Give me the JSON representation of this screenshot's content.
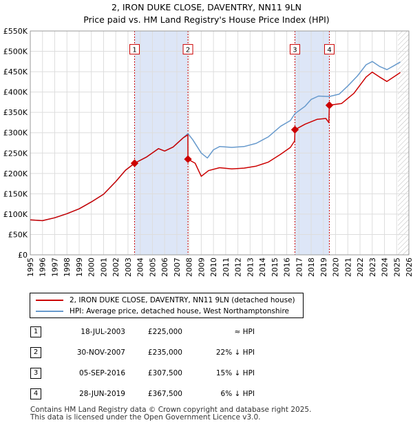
{
  "title_line1": "2, IRON DUKE CLOSE, DAVENTRY, NN11 9LN",
  "title_line2": "Price paid vs. HM Land Registry's House Price Index (HPI)",
  "colors": {
    "price": "#cc0000",
    "hpi": "#6699cc",
    "shade": "#dde6f7",
    "grid": "#dddddd"
  },
  "chart_data": {
    "type": "line",
    "xlim": [
      1995,
      2026
    ],
    "ylim": [
      0,
      550000
    ],
    "x_ticks": [
      "1995",
      "1996",
      "1997",
      "1998",
      "1999",
      "2000",
      "2001",
      "2002",
      "2003",
      "2004",
      "2005",
      "2006",
      "2007",
      "2008",
      "2009",
      "2010",
      "2011",
      "2012",
      "2013",
      "2014",
      "2015",
      "2016",
      "2017",
      "2018",
      "2019",
      "2020",
      "2021",
      "2022",
      "2023",
      "2024",
      "2025",
      "2026"
    ],
    "y_ticks": [
      {
        "value": 0,
        "label": "£0"
      },
      {
        "value": 50000,
        "label": "£50K"
      },
      {
        "value": 100000,
        "label": "£100K"
      },
      {
        "value": 150000,
        "label": "£150K"
      },
      {
        "value": 200000,
        "label": "£200K"
      },
      {
        "value": 250000,
        "label": "£250K"
      },
      {
        "value": 300000,
        "label": "£300K"
      },
      {
        "value": 350000,
        "label": "£350K"
      },
      {
        "value": 400000,
        "label": "£400K"
      },
      {
        "value": 450000,
        "label": "£450K"
      },
      {
        "value": 500000,
        "label": "£500K"
      },
      {
        "value": 550000,
        "label": "£550K"
      }
    ],
    "shaded_ranges": [
      [
        2003.54,
        2007.91
      ],
      [
        2016.67,
        2019.49
      ]
    ],
    "projection_start": 2025.1,
    "series": [
      {
        "name": "2, IRON DUKE CLOSE, DAVENTRY, NN11 9LN (detached house)",
        "color": "#cc0000",
        "points": [
          [
            1995.0,
            86000
          ],
          [
            1996.0,
            84000
          ],
          [
            1997.0,
            91000
          ],
          [
            1998.0,
            101000
          ],
          [
            1999.0,
            113000
          ],
          [
            2000.0,
            130000
          ],
          [
            2001.0,
            149000
          ],
          [
            2002.0,
            180000
          ],
          [
            2002.8,
            208000
          ],
          [
            2003.54,
            225000
          ],
          [
            2004.5,
            240000
          ],
          [
            2005.5,
            261000
          ],
          [
            2006.0,
            255000
          ],
          [
            2006.7,
            265000
          ],
          [
            2007.5,
            287000
          ],
          [
            2007.9,
            295000
          ],
          [
            2007.91,
            235000
          ],
          [
            2008.5,
            225000
          ],
          [
            2009.0,
            193000
          ],
          [
            2009.6,
            207000
          ],
          [
            2010.5,
            214000
          ],
          [
            2011.5,
            211000
          ],
          [
            2012.5,
            213000
          ],
          [
            2013.5,
            218000
          ],
          [
            2014.5,
            228000
          ],
          [
            2015.5,
            247000
          ],
          [
            2016.3,
            264000
          ],
          [
            2016.65,
            280000
          ],
          [
            2016.67,
            307500
          ],
          [
            2017.5,
            321000
          ],
          [
            2018.5,
            333000
          ],
          [
            2019.2,
            335000
          ],
          [
            2019.45,
            325000
          ],
          [
            2019.49,
            367500
          ],
          [
            2020.5,
            372000
          ],
          [
            2021.5,
            397000
          ],
          [
            2022.5,
            437000
          ],
          [
            2023.0,
            449000
          ],
          [
            2023.6,
            437000
          ],
          [
            2024.2,
            426000
          ],
          [
            2024.8,
            438000
          ],
          [
            2025.3,
            448000
          ]
        ]
      },
      {
        "name": "HPI: Average price, detached house, West Northamptonshire",
        "color": "#6699cc",
        "points": [
          [
            1995.0,
            86000
          ],
          [
            1996.0,
            84000
          ],
          [
            1997.0,
            91000
          ],
          [
            1998.0,
            101000
          ],
          [
            1999.0,
            113000
          ],
          [
            2000.0,
            130000
          ],
          [
            2001.0,
            149000
          ],
          [
            2002.0,
            180000
          ],
          [
            2002.8,
            208000
          ],
          [
            2003.54,
            225000
          ],
          [
            2004.5,
            240000
          ],
          [
            2005.5,
            261000
          ],
          [
            2006.0,
            255000
          ],
          [
            2006.7,
            265000
          ],
          [
            2007.5,
            287000
          ],
          [
            2007.9,
            298000
          ],
          [
            2008.3,
            283000
          ],
          [
            2009.0,
            250000
          ],
          [
            2009.5,
            238000
          ],
          [
            2010.0,
            258000
          ],
          [
            2010.5,
            266000
          ],
          [
            2011.5,
            264000
          ],
          [
            2012.5,
            266000
          ],
          [
            2013.5,
            274000
          ],
          [
            2014.5,
            290000
          ],
          [
            2015.5,
            316000
          ],
          [
            2016.3,
            330000
          ],
          [
            2016.67,
            347000
          ],
          [
            2017.5,
            365000
          ],
          [
            2018.0,
            382000
          ],
          [
            2018.6,
            390000
          ],
          [
            2019.49,
            389000
          ],
          [
            2020.3,
            395000
          ],
          [
            2021.0,
            415000
          ],
          [
            2021.8,
            440000
          ],
          [
            2022.5,
            467000
          ],
          [
            2023.0,
            475000
          ],
          [
            2023.6,
            463000
          ],
          [
            2024.2,
            455000
          ],
          [
            2024.8,
            465000
          ],
          [
            2025.3,
            474000
          ]
        ]
      }
    ],
    "markers": [
      {
        "label": "1",
        "x": 2003.54,
        "y": 225000
      },
      {
        "label": "2",
        "x": 2007.91,
        "y": 235000
      },
      {
        "label": "3",
        "x": 2016.67,
        "y": 307500
      },
      {
        "label": "4",
        "x": 2019.49,
        "y": 367500
      }
    ],
    "marker_label_y": 505000
  },
  "legend": {
    "price_label": "2, IRON DUKE CLOSE, DAVENTRY, NN11 9LN (detached house)",
    "hpi_label": "HPI: Average price, detached house, West Northamptonshire"
  },
  "transactions": [
    {
      "num": "1",
      "date": "18-JUL-2003",
      "price": "£225,000",
      "delta": "≈ HPI"
    },
    {
      "num": "2",
      "date": "30-NOV-2007",
      "price": "£235,000",
      "delta": "22% ↓ HPI"
    },
    {
      "num": "3",
      "date": "05-SEP-2016",
      "price": "£307,500",
      "delta": "15% ↓ HPI"
    },
    {
      "num": "4",
      "date": "28-JUN-2019",
      "price": "£367,500",
      "delta": "6% ↓ HPI"
    }
  ],
  "footer_line1": "Contains HM Land Registry data © Crown copyright and database right 2025.",
  "footer_line2": "This data is licensed under the Open Government Licence v3.0."
}
